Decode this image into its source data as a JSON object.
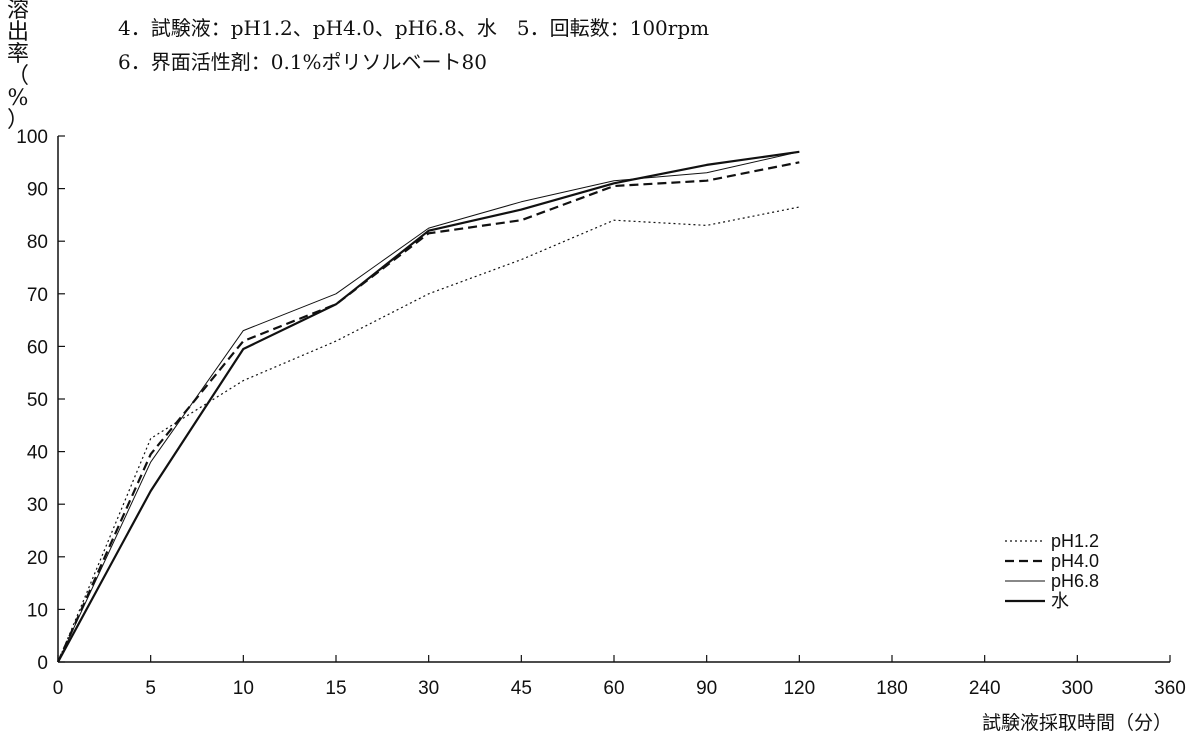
{
  "conditions": {
    "line1": "4．試験液：pH1.2、pH4.0、pH6.8、水　5．回転数：100rpm",
    "line2": "6．界面活性剤：0.1%ポリソルベート80"
  },
  "chart_data": {
    "type": "line",
    "title": "",
    "xlabel": "試験液採取時間（分）",
    "ylabel": "溶出率（%）",
    "ylabel_chars": [
      "溶",
      "出",
      "率",
      "（",
      "%",
      "）"
    ],
    "x": [
      "0",
      "5",
      "10",
      "15",
      "30",
      "45",
      "60",
      "90",
      "120",
      "180",
      "240",
      "300",
      "360"
    ],
    "ylim": [
      0,
      100
    ],
    "yticks": [
      0,
      10,
      20,
      30,
      40,
      50,
      60,
      70,
      80,
      90,
      100
    ],
    "grid": false,
    "legend_position": "bottom-right",
    "series": [
      {
        "name": "pH1.2",
        "style": "dotted",
        "values": [
          0,
          42.5,
          53.5,
          61,
          70,
          76.5,
          84,
          83,
          86.5,
          null,
          null,
          null,
          null
        ]
      },
      {
        "name": "pH4.0",
        "style": "dashed",
        "values": [
          0,
          39.5,
          61,
          68,
          81.5,
          84,
          90.5,
          91.5,
          95,
          null,
          null,
          null,
          null
        ]
      },
      {
        "name": "pH6.8",
        "style": "thin",
        "values": [
          0,
          38,
          63,
          70,
          82.5,
          87.5,
          91.5,
          93,
          97,
          null,
          null,
          null,
          null
        ]
      },
      {
        "name": "水",
        "style": "solid",
        "values": [
          0,
          32.5,
          59.5,
          68,
          82,
          86,
          91,
          94.5,
          97,
          null,
          null,
          null,
          null
        ]
      }
    ]
  }
}
